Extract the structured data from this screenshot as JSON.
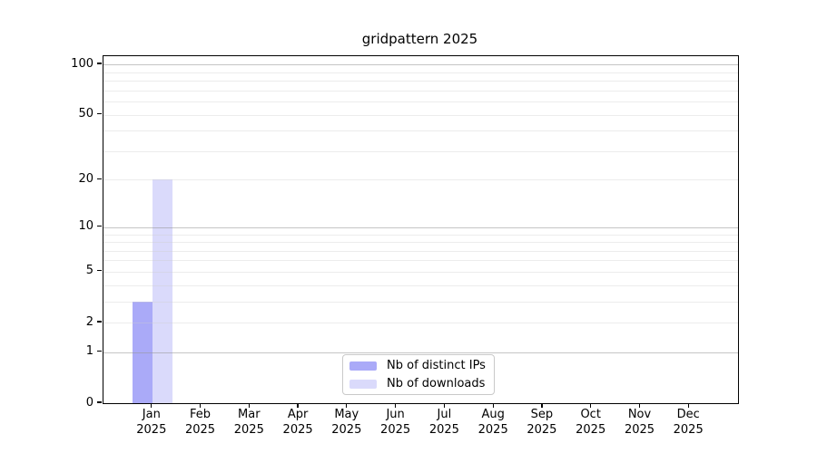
{
  "chart_data": {
    "type": "bar",
    "title": "gridpattern 2025",
    "categories": [
      "Jan 2025",
      "Feb 2025",
      "Mar 2025",
      "Apr 2025",
      "May 2025",
      "Jun 2025",
      "Jul 2025",
      "Aug 2025",
      "Sep 2025",
      "Oct 2025",
      "Nov 2025",
      "Dec 2025"
    ],
    "x_tick_months": [
      "Jan",
      "Feb",
      "Mar",
      "Apr",
      "May",
      "Jun",
      "Jul",
      "Aug",
      "Sep",
      "Oct",
      "Nov",
      "Dec"
    ],
    "x_tick_year": "2025",
    "series": [
      {
        "name": "Nb of distinct IPs",
        "color": "#aaaaf8",
        "values": [
          3,
          0,
          0,
          0,
          0,
          0,
          0,
          0,
          0,
          0,
          0,
          0
        ]
      },
      {
        "name": "Nb of downloads",
        "color": "#dadafb",
        "values": [
          20,
          0,
          0,
          0,
          0,
          0,
          0,
          0,
          0,
          0,
          0,
          0
        ]
      }
    ],
    "y_axis": {
      "scale": "log1p",
      "tick_labels": [
        "0",
        "1",
        "2",
        "5",
        "10",
        "20",
        "50",
        "100"
      ],
      "tick_values": [
        0,
        1,
        2,
        5,
        10,
        20,
        50,
        100
      ],
      "major_gridlines": [
        1,
        10,
        100
      ],
      "minor_gridlines": [
        2,
        3,
        4,
        5,
        6,
        7,
        8,
        9,
        20,
        30,
        40,
        50,
        60,
        70,
        80,
        90
      ],
      "ylim": [
        0,
        112
      ]
    },
    "legend": {
      "position": "lower center",
      "entries": [
        "Nb of distinct IPs",
        "Nb of downloads"
      ]
    },
    "grid": "horizontal",
    "colors": {
      "bar_distinct_ips": "#aaaaf8",
      "bar_downloads": "#dadafb",
      "major_grid": "#c6c6c6",
      "minor_grid": "#ebebeb",
      "spine": "#000000",
      "text": "#000000",
      "background": "#ffffff"
    }
  }
}
